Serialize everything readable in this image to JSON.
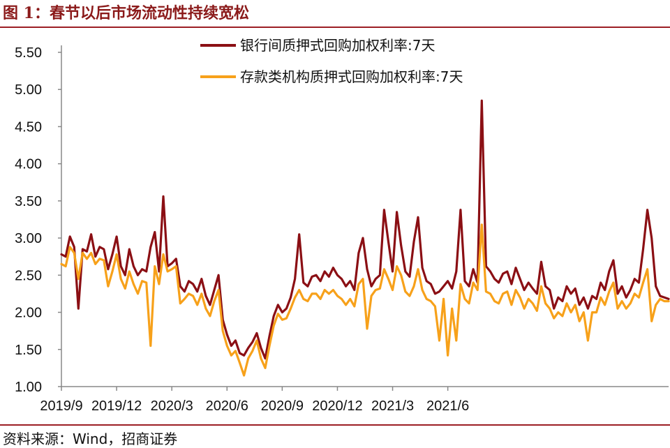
{
  "title": "图 1：春节以后市场流动性持续宽松",
  "source": "资料来源：Wind，招商证券",
  "chart_data": {
    "type": "line",
    "title": "",
    "xlabel": "",
    "ylabel": "",
    "ylim": [
      1.0,
      5.5
    ],
    "yticks": [
      "1.00",
      "1.50",
      "2.00",
      "2.50",
      "3.00",
      "3.50",
      "4.00",
      "4.50",
      "5.00",
      "5.50"
    ],
    "xticks": [
      "2019/9",
      "2019/12",
      "2020/3",
      "2020/6",
      "2020/9",
      "2020/12",
      "2021/3",
      "2021/6"
    ],
    "x_index_of_ticks": [
      0,
      13,
      26,
      39,
      52,
      65,
      78,
      91
    ],
    "legend_position": "top-center",
    "grid": false,
    "series": [
      {
        "name": "银行间质押式回购加权利率:7天",
        "color": "#8b0f14",
        "values": [
          2.78,
          2.75,
          3.02,
          2.88,
          2.05,
          2.85,
          2.82,
          3.05,
          2.75,
          2.88,
          2.85,
          2.58,
          2.78,
          3.02,
          2.62,
          2.5,
          2.85,
          2.62,
          2.5,
          2.58,
          2.55,
          2.88,
          3.08,
          2.55,
          3.56,
          2.62,
          2.66,
          2.72,
          2.35,
          2.28,
          2.42,
          2.38,
          2.28,
          2.45,
          2.22,
          2.1,
          2.3,
          2.5,
          1.9,
          1.7,
          1.55,
          1.62,
          1.45,
          1.42,
          1.52,
          1.6,
          1.72,
          1.52,
          1.38,
          1.68,
          1.95,
          2.1,
          2.0,
          2.05,
          2.2,
          2.45,
          3.05,
          2.4,
          2.35,
          2.48,
          2.5,
          2.42,
          2.55,
          2.48,
          2.6,
          2.5,
          2.45,
          2.35,
          2.42,
          2.3,
          2.8,
          3.0,
          2.58,
          2.35,
          2.45,
          2.5,
          3.38,
          2.95,
          2.55,
          3.35,
          2.9,
          2.55,
          2.48,
          2.95,
          3.28,
          2.6,
          2.42,
          2.38,
          2.25,
          2.28,
          2.35,
          2.42,
          2.32,
          2.55,
          3.38,
          2.42,
          2.35,
          2.58,
          2.4,
          4.85,
          2.62,
          2.55,
          2.45,
          2.4,
          2.52,
          2.55,
          2.38,
          2.6,
          2.45,
          2.3,
          2.4,
          2.32,
          2.25,
          2.68,
          2.35,
          2.3,
          2.05,
          2.2,
          2.15,
          2.35,
          2.25,
          2.32,
          2.1,
          2.2,
          2.05,
          2.22,
          2.18,
          2.4,
          2.3,
          2.55,
          2.7,
          2.25,
          2.35,
          2.2,
          2.3,
          2.45,
          2.4,
          2.85,
          3.38,
          3.0,
          2.35,
          2.22,
          2.2,
          2.18
        ],
        "note": ""
      },
      {
        "name": "存款类机构质押式回购加权利率:7天",
        "color": "#f7a11a",
        "values": [
          2.65,
          2.62,
          2.88,
          2.8,
          2.45,
          2.8,
          2.72,
          2.8,
          2.65,
          2.72,
          2.7,
          2.35,
          2.55,
          2.78,
          2.45,
          2.32,
          2.55,
          2.38,
          2.25,
          2.42,
          2.4,
          1.55,
          2.62,
          2.38,
          2.78,
          2.55,
          2.58,
          2.62,
          2.12,
          2.18,
          2.25,
          2.22,
          2.1,
          2.25,
          2.05,
          1.95,
          2.15,
          2.3,
          1.75,
          1.55,
          1.42,
          1.48,
          1.32,
          1.15,
          1.38,
          1.48,
          1.62,
          1.38,
          1.25,
          1.55,
          1.82,
          1.98,
          1.9,
          1.92,
          2.05,
          2.2,
          2.3,
          2.18,
          2.15,
          2.25,
          2.25,
          2.18,
          2.3,
          2.25,
          2.3,
          2.22,
          2.18,
          2.1,
          2.18,
          2.08,
          2.38,
          2.45,
          1.78,
          2.22,
          2.3,
          2.32,
          2.58,
          2.45,
          2.3,
          2.62,
          2.5,
          2.28,
          2.22,
          2.35,
          2.58,
          2.3,
          2.18,
          2.15,
          2.08,
          1.62,
          2.18,
          1.42,
          2.05,
          1.62,
          2.38,
          2.18,
          2.12,
          2.4,
          2.3,
          3.18,
          2.28,
          2.25,
          2.15,
          2.12,
          2.25,
          2.28,
          2.1,
          2.3,
          2.2,
          2.05,
          2.18,
          2.12,
          2.02,
          2.35,
          2.12,
          2.05,
          1.92,
          2.0,
          1.95,
          2.12,
          2.0,
          2.1,
          1.88,
          2.0,
          1.62,
          2.0,
          2.0,
          2.2,
          2.1,
          2.28,
          2.4,
          2.05,
          2.15,
          2.05,
          2.12,
          2.25,
          2.2,
          2.4,
          2.58,
          1.88,
          2.1,
          2.18,
          2.15,
          2.15
        ],
        "note": ""
      }
    ]
  }
}
